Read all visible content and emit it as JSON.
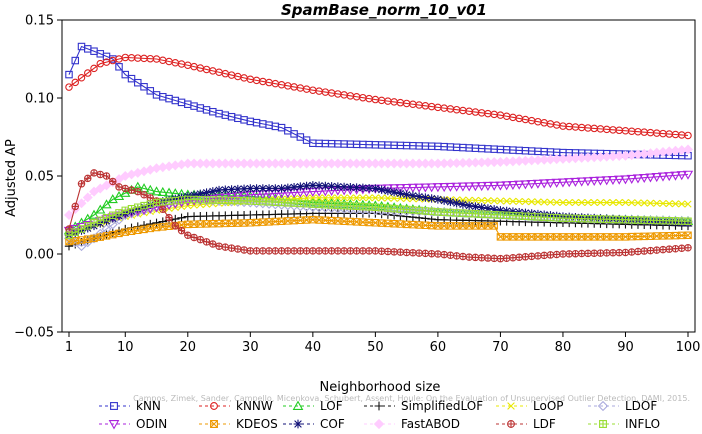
{
  "chart_data": {
    "type": "line",
    "title": "SpamBase_norm_10_v01",
    "xlabel": "Neighborhood size",
    "ylabel": "Adjusted AP",
    "xlim": [
      1,
      100
    ],
    "ylim": [
      -0.05,
      0.15
    ],
    "xticks": [
      1,
      10,
      20,
      30,
      40,
      50,
      60,
      70,
      80,
      90,
      100
    ],
    "yticks": [
      -0.05,
      0.0,
      0.05,
      0.1,
      0.15
    ],
    "ytick_labels": [
      "−0.05",
      "0.00",
      "0.05",
      "0.10",
      "0.15"
    ],
    "grid": false,
    "legend_position": "bottom",
    "watermark": "Campos, Zimek, Sander, Campello, Micenkova, Schubert, Assent, Houle: On the Evaluation of Unsupervised Outlier Detection. DAMI, 2015.",
    "series": [
      {
        "name": "kNN",
        "marker": "square",
        "color": "#3333cc",
        "points": [
          [
            1,
            0.115
          ],
          [
            2,
            0.124
          ],
          [
            3,
            0.133
          ],
          [
            5,
            0.13
          ],
          [
            8,
            0.125
          ],
          [
            10,
            0.115
          ],
          [
            15,
            0.102
          ],
          [
            20,
            0.096
          ],
          [
            25,
            0.09
          ],
          [
            30,
            0.085
          ],
          [
            35,
            0.081
          ],
          [
            40,
            0.071
          ],
          [
            50,
            0.07
          ],
          [
            60,
            0.069
          ],
          [
            70,
            0.067
          ],
          [
            80,
            0.065
          ],
          [
            90,
            0.064
          ],
          [
            100,
            0.063
          ]
        ]
      },
      {
        "name": "kNNW",
        "marker": "circle",
        "color": "#dd2222",
        "points": [
          [
            1,
            0.107
          ],
          [
            3,
            0.113
          ],
          [
            6,
            0.122
          ],
          [
            10,
            0.126
          ],
          [
            15,
            0.125
          ],
          [
            20,
            0.121
          ],
          [
            30,
            0.112
          ],
          [
            40,
            0.105
          ],
          [
            50,
            0.099
          ],
          [
            60,
            0.094
          ],
          [
            70,
            0.089
          ],
          [
            80,
            0.082
          ],
          [
            90,
            0.079
          ],
          [
            100,
            0.076
          ]
        ]
      },
      {
        "name": "LOF",
        "marker": "triangle-up",
        "color": "#22cc22",
        "points": [
          [
            1,
            0.015
          ],
          [
            5,
            0.025
          ],
          [
            8,
            0.035
          ],
          [
            12,
            0.043
          ],
          [
            15,
            0.04
          ],
          [
            20,
            0.038
          ],
          [
            30,
            0.037
          ],
          [
            40,
            0.033
          ],
          [
            50,
            0.031
          ],
          [
            60,
            0.027
          ],
          [
            70,
            0.025
          ],
          [
            80,
            0.023
          ],
          [
            90,
            0.022
          ],
          [
            100,
            0.021
          ]
        ]
      },
      {
        "name": "SimplifiedLOF",
        "marker": "plus",
        "color": "#111111",
        "points": [
          [
            1,
            0.005
          ],
          [
            5,
            0.01
          ],
          [
            10,
            0.016
          ],
          [
            15,
            0.02
          ],
          [
            20,
            0.024
          ],
          [
            30,
            0.025
          ],
          [
            40,
            0.026
          ],
          [
            50,
            0.026
          ],
          [
            60,
            0.022
          ],
          [
            70,
            0.021
          ],
          [
            80,
            0.02
          ],
          [
            90,
            0.019
          ],
          [
            100,
            0.018
          ]
        ]
      },
      {
        "name": "LoOP",
        "marker": "x",
        "color": "#e8e800",
        "points": [
          [
            1,
            0.012
          ],
          [
            5,
            0.018
          ],
          [
            10,
            0.024
          ],
          [
            15,
            0.028
          ],
          [
            20,
            0.031
          ],
          [
            30,
            0.034
          ],
          [
            40,
            0.036
          ],
          [
            50,
            0.036
          ],
          [
            60,
            0.035
          ],
          [
            70,
            0.034
          ],
          [
            80,
            0.033
          ],
          [
            90,
            0.033
          ],
          [
            100,
            0.032
          ]
        ]
      },
      {
        "name": "LDOF",
        "marker": "diamond",
        "color": "#aaaadd",
        "points": [
          [
            1,
            0.01
          ],
          [
            3,
            0.005
          ],
          [
            5,
            0.01
          ],
          [
            10,
            0.025
          ],
          [
            15,
            0.03
          ],
          [
            20,
            0.035
          ],
          [
            30,
            0.033
          ],
          [
            40,
            0.03
          ],
          [
            50,
            0.028
          ],
          [
            60,
            0.027
          ],
          [
            70,
            0.025
          ],
          [
            80,
            0.023
          ],
          [
            90,
            0.022
          ],
          [
            100,
            0.021
          ]
        ]
      },
      {
        "name": "ODIN",
        "marker": "triangle-down",
        "color": "#aa22dd",
        "points": [
          [
            1,
            0.015
          ],
          [
            5,
            0.02
          ],
          [
            10,
            0.026
          ],
          [
            20,
            0.034
          ],
          [
            30,
            0.038
          ],
          [
            40,
            0.04
          ],
          [
            50,
            0.042
          ],
          [
            60,
            0.043
          ],
          [
            70,
            0.044
          ],
          [
            80,
            0.046
          ],
          [
            90,
            0.048
          ],
          [
            100,
            0.051
          ]
        ]
      },
      {
        "name": "KDEOS",
        "marker": "square-x",
        "color": "#ee9900",
        "points": [
          [
            1,
            0.008
          ],
          [
            5,
            0.01
          ],
          [
            10,
            0.014
          ],
          [
            15,
            0.017
          ],
          [
            20,
            0.019
          ],
          [
            30,
            0.02
          ],
          [
            40,
            0.022
          ],
          [
            50,
            0.02
          ],
          [
            60,
            0.018
          ],
          [
            69,
            0.018
          ],
          [
            70,
            0.011
          ],
          [
            80,
            0.011
          ],
          [
            90,
            0.011
          ],
          [
            100,
            0.012
          ]
        ]
      },
      {
        "name": "COF",
        "marker": "star",
        "color": "#111177",
        "points": [
          [
            1,
            0.012
          ],
          [
            5,
            0.018
          ],
          [
            10,
            0.026
          ],
          [
            15,
            0.033
          ],
          [
            20,
            0.037
          ],
          [
            25,
            0.041
          ],
          [
            30,
            0.042
          ],
          [
            35,
            0.042
          ],
          [
            40,
            0.044
          ],
          [
            45,
            0.043
          ],
          [
            50,
            0.042
          ],
          [
            55,
            0.038
          ],
          [
            60,
            0.035
          ],
          [
            65,
            0.031
          ],
          [
            70,
            0.028
          ],
          [
            80,
            0.024
          ],
          [
            90,
            0.022
          ],
          [
            100,
            0.02
          ]
        ]
      },
      {
        "name": "FastABOD",
        "marker": "diamond-filled",
        "color": "#ffccff",
        "points": [
          [
            1,
            0.025
          ],
          [
            5,
            0.04
          ],
          [
            10,
            0.05
          ],
          [
            15,
            0.055
          ],
          [
            20,
            0.058
          ],
          [
            30,
            0.058
          ],
          [
            40,
            0.058
          ],
          [
            50,
            0.058
          ],
          [
            60,
            0.058
          ],
          [
            70,
            0.059
          ],
          [
            80,
            0.061
          ],
          [
            90,
            0.063
          ],
          [
            100,
            0.067
          ]
        ]
      },
      {
        "name": "LDF",
        "marker": "circle-plus",
        "color": "#bb3333",
        "points": [
          [
            1,
            0.016
          ],
          [
            3,
            0.045
          ],
          [
            5,
            0.052
          ],
          [
            7,
            0.05
          ],
          [
            9,
            0.043
          ],
          [
            12,
            0.04
          ],
          [
            15,
            0.034
          ],
          [
            18,
            0.018
          ],
          [
            20,
            0.012
          ],
          [
            25,
            0.005
          ],
          [
            30,
            0.002
          ],
          [
            40,
            0.002
          ],
          [
            50,
            0.002
          ],
          [
            60,
            0.0
          ],
          [
            65,
            -0.002
          ],
          [
            70,
            -0.003
          ],
          [
            80,
            0.0
          ],
          [
            90,
            0.001
          ],
          [
            100,
            0.004
          ]
        ]
      },
      {
        "name": "INFLO",
        "marker": "square-cross",
        "color": "#99dd33",
        "points": [
          [
            1,
            0.012
          ],
          [
            5,
            0.02
          ],
          [
            10,
            0.028
          ],
          [
            15,
            0.033
          ],
          [
            20,
            0.035
          ],
          [
            30,
            0.034
          ],
          [
            40,
            0.032
          ],
          [
            50,
            0.03
          ],
          [
            60,
            0.027
          ],
          [
            70,
            0.025
          ],
          [
            80,
            0.023
          ],
          [
            90,
            0.022
          ],
          [
            100,
            0.021
          ]
        ]
      }
    ]
  }
}
